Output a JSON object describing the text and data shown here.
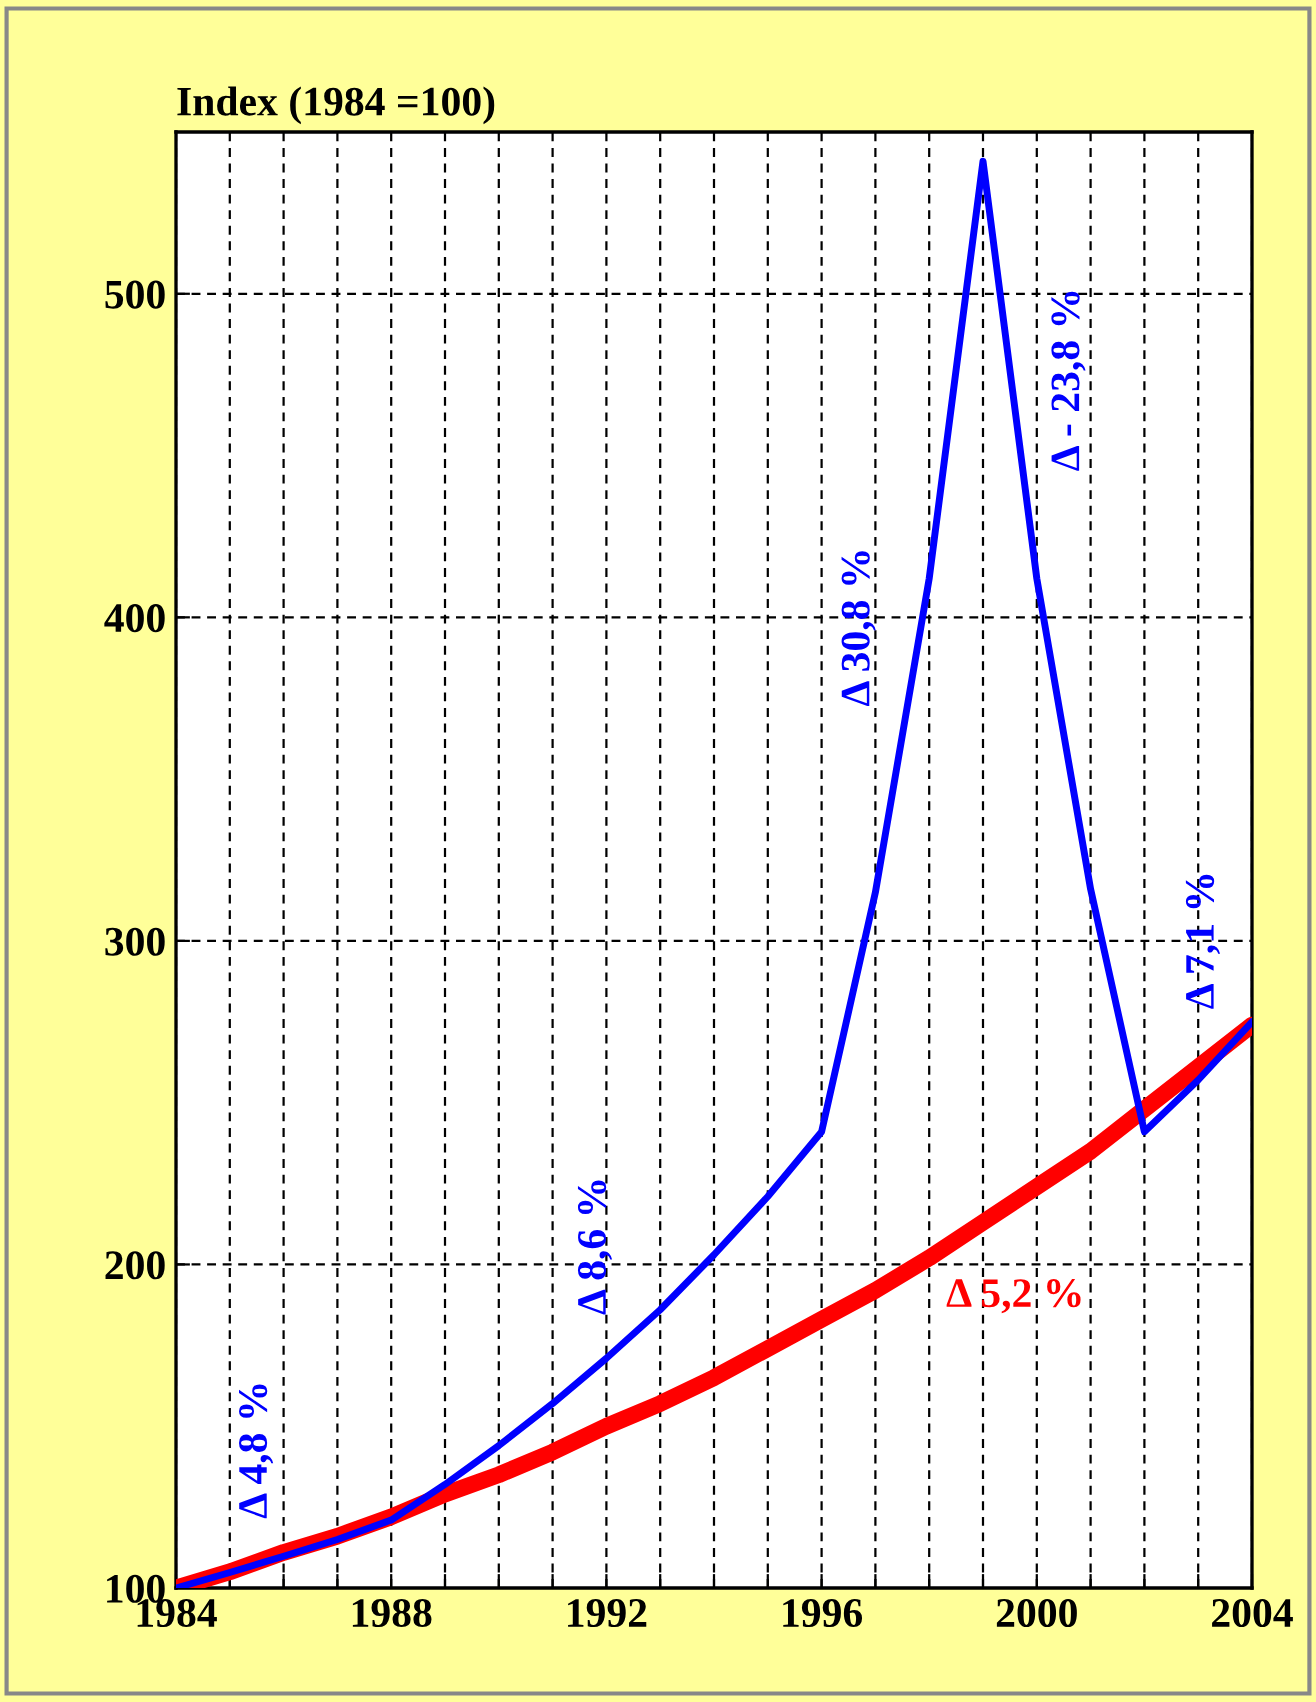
{
  "chart_data": {
    "type": "line",
    "title": "Index (1984 =100)",
    "x": [
      1984,
      1985,
      1986,
      1987,
      1988,
      1989,
      1990,
      1991,
      1992,
      1993,
      1994,
      1995,
      1996,
      1997,
      1998,
      1999,
      2000,
      2001,
      2002,
      2003,
      2004
    ],
    "series": [
      {
        "color": "#0000ff",
        "values": [
          100,
          104.8,
          109.8,
          115,
          121,
          132,
          144,
          157,
          171,
          186,
          203,
          221,
          241,
          315,
          412,
          541,
          412,
          316,
          241,
          257,
          275
        ]
      },
      {
        "color": "#ff0000",
        "values": [
          100,
          105,
          111,
          116,
          122,
          129,
          135,
          142,
          150,
          157,
          165,
          174,
          183,
          192,
          202,
          213,
          224,
          235,
          248,
          261,
          274
        ]
      }
    ],
    "xlim": [
      1984,
      2004
    ],
    "xticks": [
      1984,
      {
        "value": 1985,
        "label": null
      },
      {
        "value": 1986,
        "label": null
      },
      {
        "value": 1987,
        "label": null
      },
      1988,
      {
        "value": 1989,
        "label": null
      },
      {
        "value": 1990,
        "label": null
      },
      {
        "value": 1991,
        "label": null
      },
      1992,
      {
        "value": 1993,
        "label": null
      },
      {
        "value": 1994,
        "label": null
      },
      {
        "value": 1995,
        "label": null
      },
      1996,
      {
        "value": 1997,
        "label": null
      },
      {
        "value": 1998,
        "label": null
      },
      {
        "value": 1999,
        "label": null
      },
      2000,
      {
        "value": 2001,
        "label": null
      },
      {
        "value": 2002,
        "label": null
      },
      {
        "value": 2003,
        "label": null
      },
      2004
    ],
    "ylim": [
      100,
      550
    ],
    "yticks": [
      100,
      200,
      300,
      400,
      500
    ],
    "grid": true,
    "line_style": "solid",
    "marker": "none",
    "legend": false,
    "annotations": [
      "Δ 4,8 %",
      "Δ 8,6 %",
      "Δ 30,8 %",
      "Δ - 23,8 %",
      "Δ 7,1 %",
      "Δ 5,2 %"
    ]
  }
}
